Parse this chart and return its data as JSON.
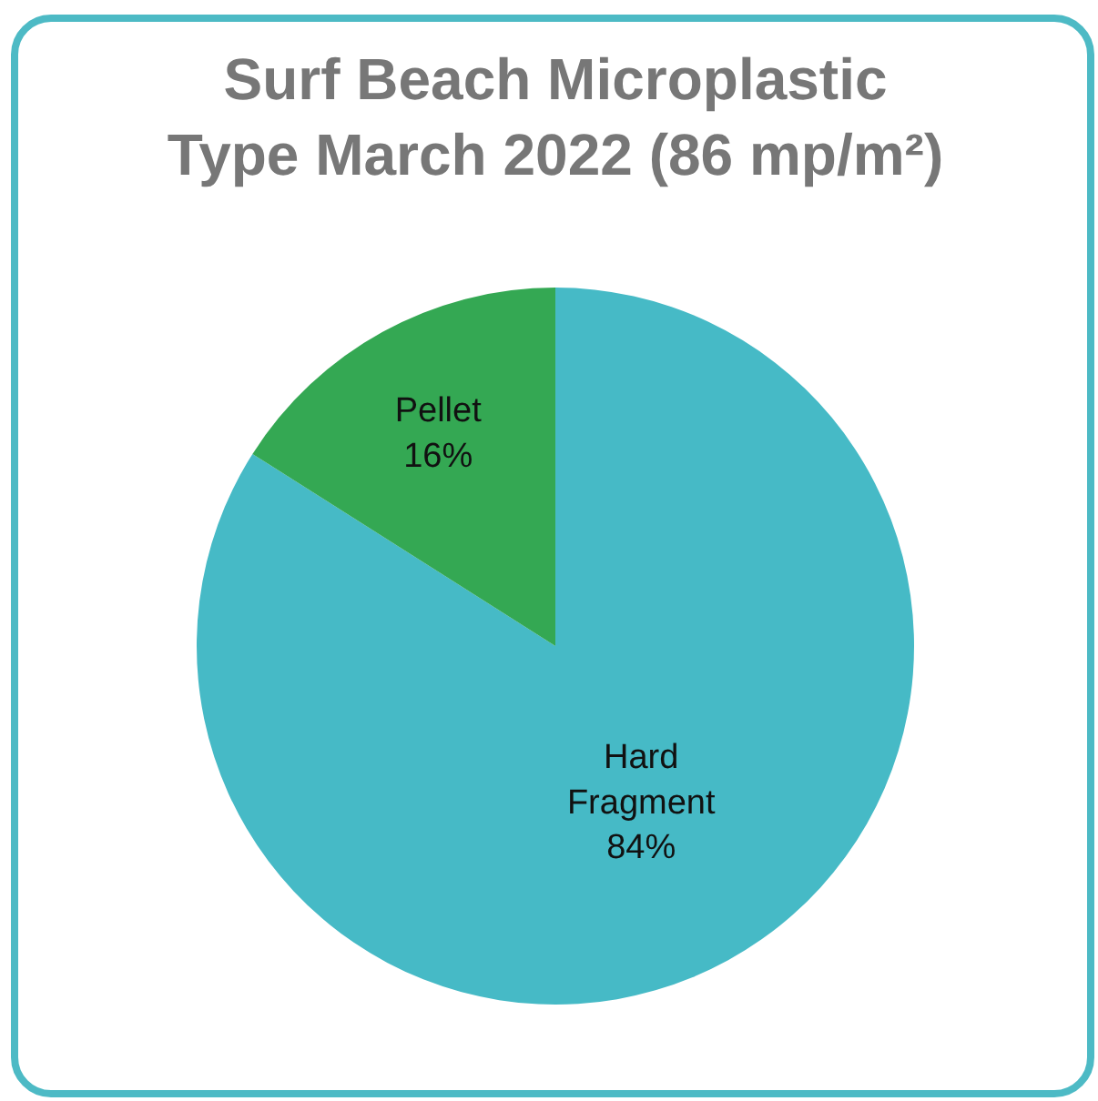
{
  "chart_data": {
    "type": "pie",
    "title": "Surf Beach Microplastic Type March 2022 (86 mp/m²)",
    "categories": [
      "Hard Fragment",
      "Pellet"
    ],
    "values": [
      84,
      16
    ],
    "colors": [
      "#46bac6",
      "#34a853"
    ],
    "value_labels": [
      "84%",
      "16%"
    ],
    "legend": false
  }
}
